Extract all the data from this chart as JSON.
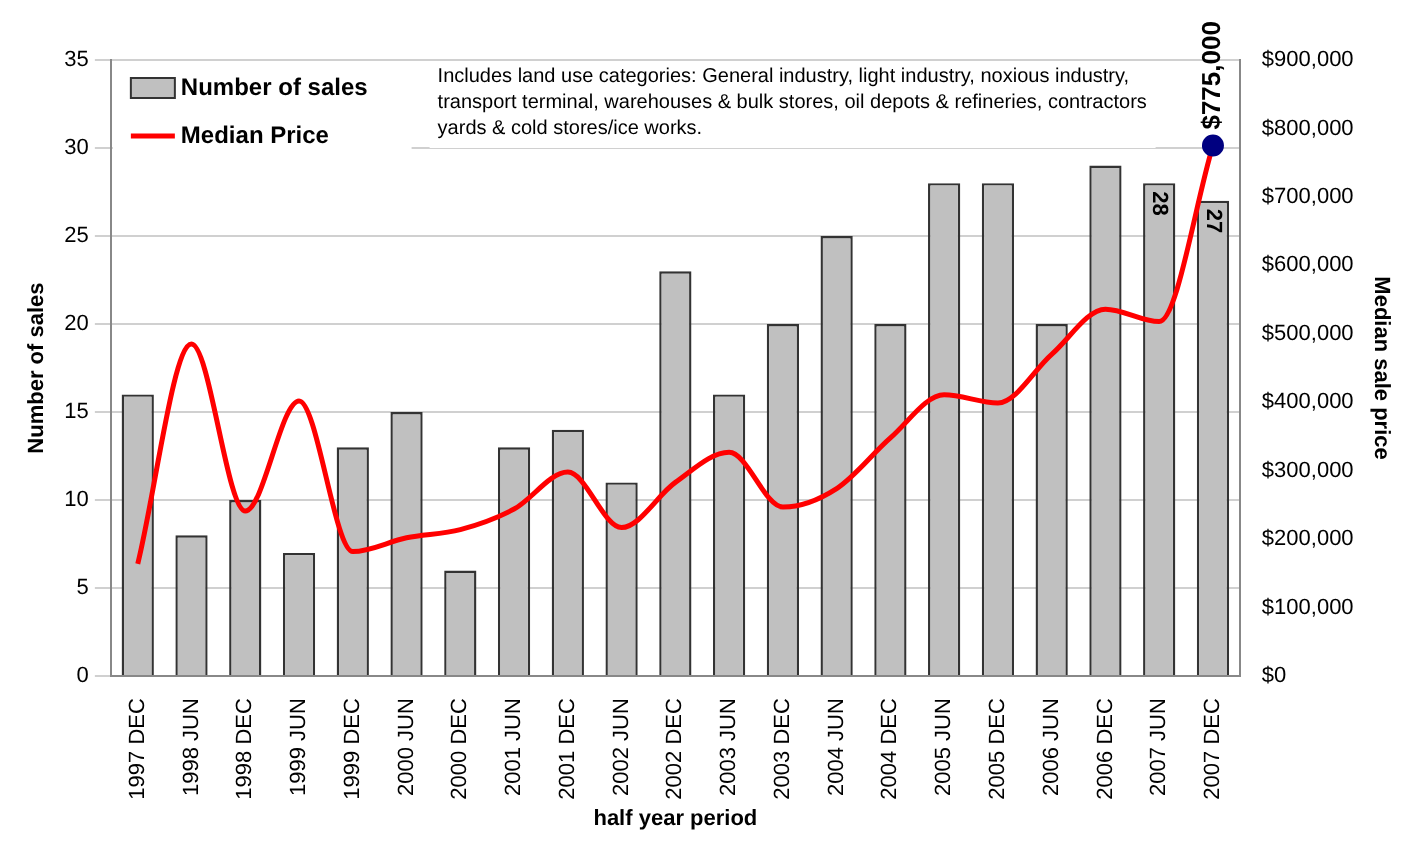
{
  "chart_data": {
    "type": "bar",
    "categories": [
      "1997 DEC",
      "1998 JUN",
      "1998 DEC",
      "1999 JUN",
      "1999 DEC",
      "2000 JUN",
      "2000 DEC",
      "2001 JUN",
      "2001 DEC",
      "2002 JUN",
      "2002 DEC",
      "2003 JUN",
      "2003 DEC",
      "2004 JUN",
      "2004 DEC",
      "2005 JUN",
      "2005 DEC",
      "2006 JUN",
      "2006 DEC",
      "2007 JUN",
      "2007 DEC"
    ],
    "series": [
      {
        "name": "Number of sales",
        "color": "#c0c0c0",
        "values": [
          16,
          8,
          10,
          7,
          13,
          15,
          6,
          13,
          14,
          11,
          23,
          16,
          20,
          25,
          20,
          28,
          28,
          20,
          29,
          28,
          27
        ],
        "value_labels": [
          null,
          null,
          null,
          null,
          null,
          null,
          null,
          null,
          null,
          null,
          null,
          null,
          null,
          null,
          null,
          null,
          null,
          null,
          null,
          "28",
          "27"
        ]
      },
      {
        "name": "Median Price",
        "type": "line",
        "axis": "y2",
        "color": "#ff0000",
        "marker": "none",
        "values": [
          164000,
          485000,
          241000,
          402000,
          182000,
          202000,
          214000,
          244000,
          298000,
          217000,
          283000,
          327000,
          247000,
          274000,
          348000,
          411000,
          399000,
          470000,
          536000,
          518000,
          775000
        ]
      },
      {
        "type": "scatter",
        "axis": "y2",
        "color": "#000080",
        "marker": "circle",
        "x": [
          "2007 DEC"
        ],
        "values": [
          775000
        ],
        "value_labels": [
          "$775,000"
        ]
      }
    ],
    "xlabel": "half year period",
    "ylabel": "Number of sales",
    "y2label": "Median sale price",
    "ylim": [
      0,
      35
    ],
    "yticks": [
      0,
      5,
      10,
      15,
      20,
      25,
      30,
      35
    ],
    "y2lim": [
      0,
      900000
    ],
    "y2ticks": [
      {
        "value": 0,
        "label": "$0"
      },
      {
        "value": 100000,
        "label": "$100,000"
      },
      {
        "value": 200000,
        "label": "$200,000"
      },
      {
        "value": 300000,
        "label": "$300,000"
      },
      {
        "value": 400000,
        "label": "$400,000"
      },
      {
        "value": 500000,
        "label": "$500,000"
      },
      {
        "value": 600000,
        "label": "$600,000"
      },
      {
        "value": 700000,
        "label": "$700,000"
      },
      {
        "value": 800000,
        "label": "$800,000"
      },
      {
        "value": 900000,
        "label": "$900,000"
      }
    ],
    "grid": "y",
    "legend": "top left",
    "annotations": [
      "Includes land use categories: General industry, light industry, noxious industry, transport terminal, warehouses & bulk stores, oil depots & refineries, contractors yards & cold stores/ice works."
    ]
  }
}
